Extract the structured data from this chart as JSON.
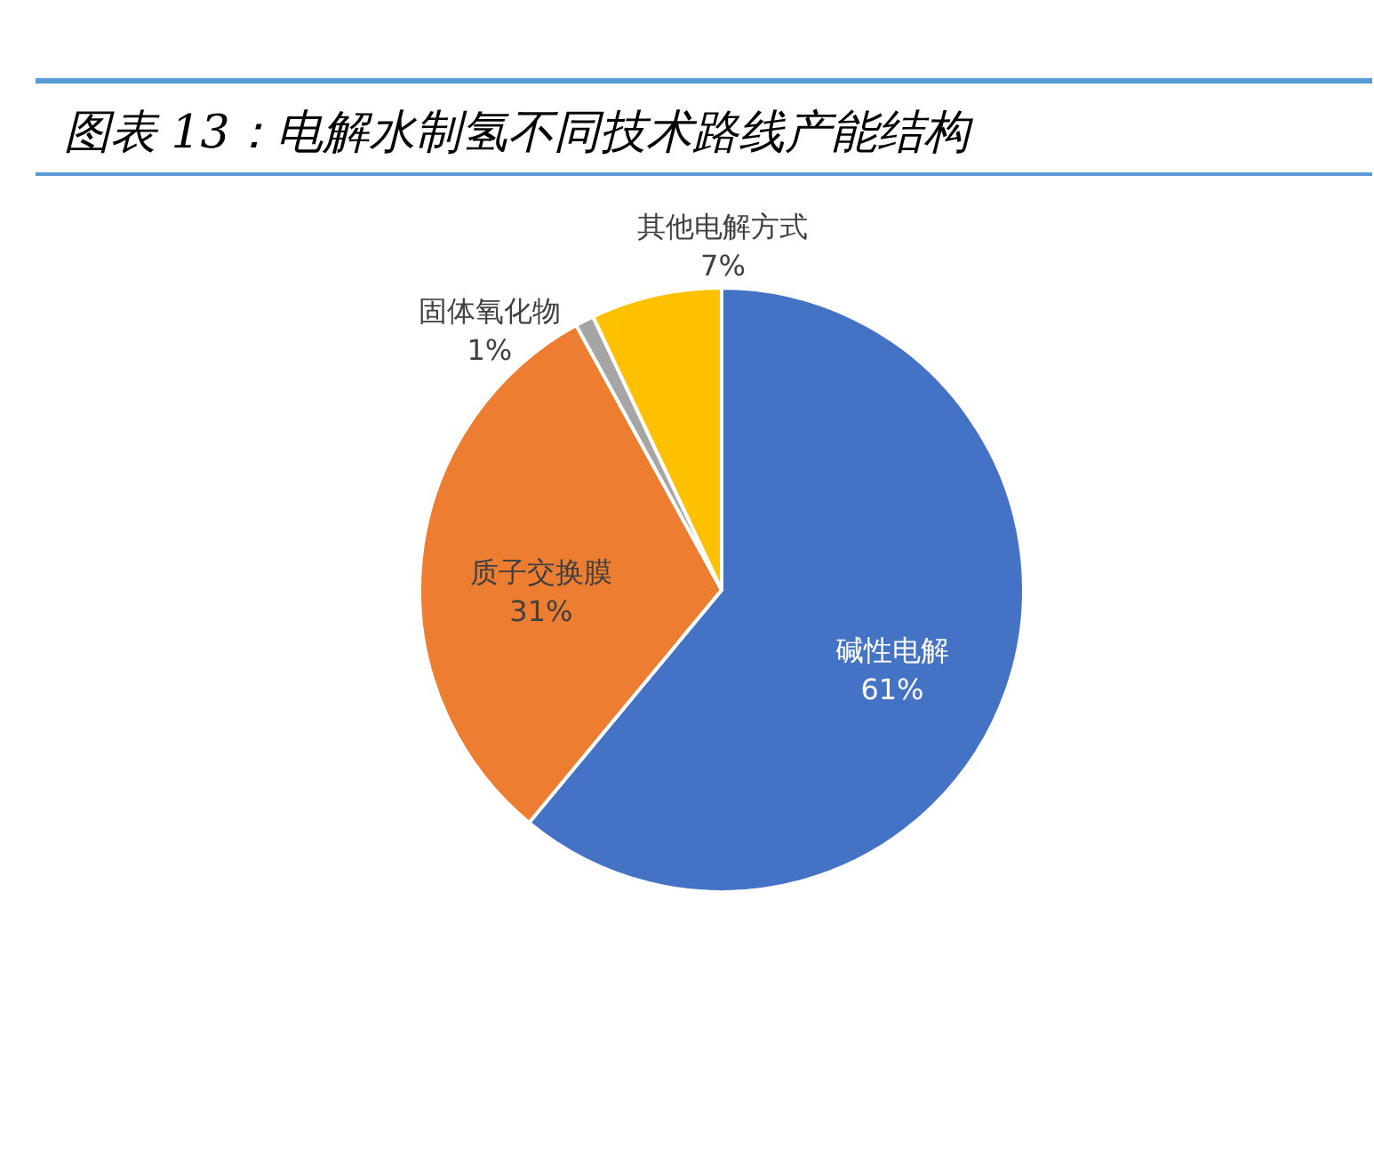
{
  "chart_data": {
    "type": "pie",
    "title": "图表 13：电解水制氢不同技术路线产能结构",
    "categories": [
      "碱性电解",
      "质子交换膜",
      "固体氧化物",
      "其他电解方式"
    ],
    "values": [
      61,
      31,
      1,
      7
    ],
    "colors": [
      "#4472c4",
      "#ed7d31",
      "#a5a5a5",
      "#ffc000"
    ],
    "value_labels": [
      "61%",
      "31%",
      "1%",
      "7%"
    ]
  }
}
